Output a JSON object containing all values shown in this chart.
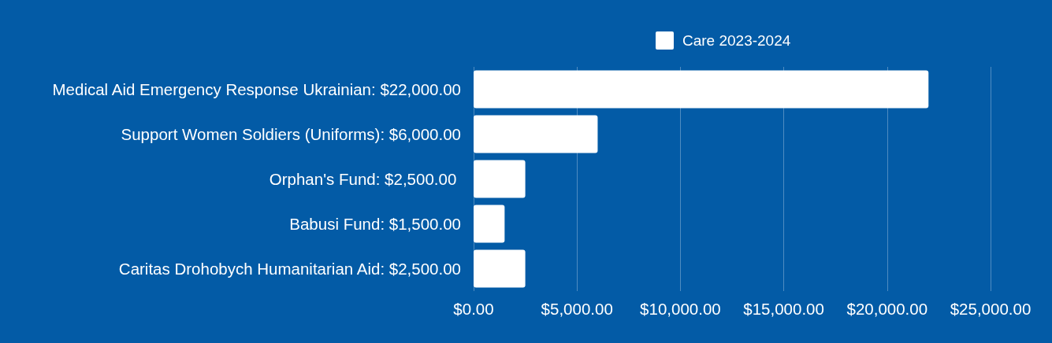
{
  "chart_data": {
    "type": "bar",
    "orientation": "horizontal",
    "categories": [
      "Medical Aid Emergency Response Ukrainian: $22,000.00",
      "Support Women Soldiers (Uniforms): $6,000.00",
      "Orphan's Fund: $2,500.00 ",
      "Babusi Fund: $1,500.00",
      "Caritas Drohobych Humanitarian Aid: $2,500.00"
    ],
    "series": [
      {
        "name": "Care 2023-2024",
        "color": "#ffffff",
        "values": [
          22000,
          6000,
          2500,
          1500,
          2500
        ]
      }
    ],
    "xlim": [
      0,
      25000
    ],
    "xticks": [
      {
        "value": 0,
        "label": "$0.00"
      },
      {
        "value": 5000,
        "label": "$5,000.00"
      },
      {
        "value": 10000,
        "label": "$10,000.00"
      },
      {
        "value": 15000,
        "label": "$15,000.00"
      },
      {
        "value": 20000,
        "label": "$20,000.00"
      },
      {
        "value": 25000,
        "label": "$25,000.00"
      }
    ],
    "grid": "x",
    "legend": "top"
  }
}
